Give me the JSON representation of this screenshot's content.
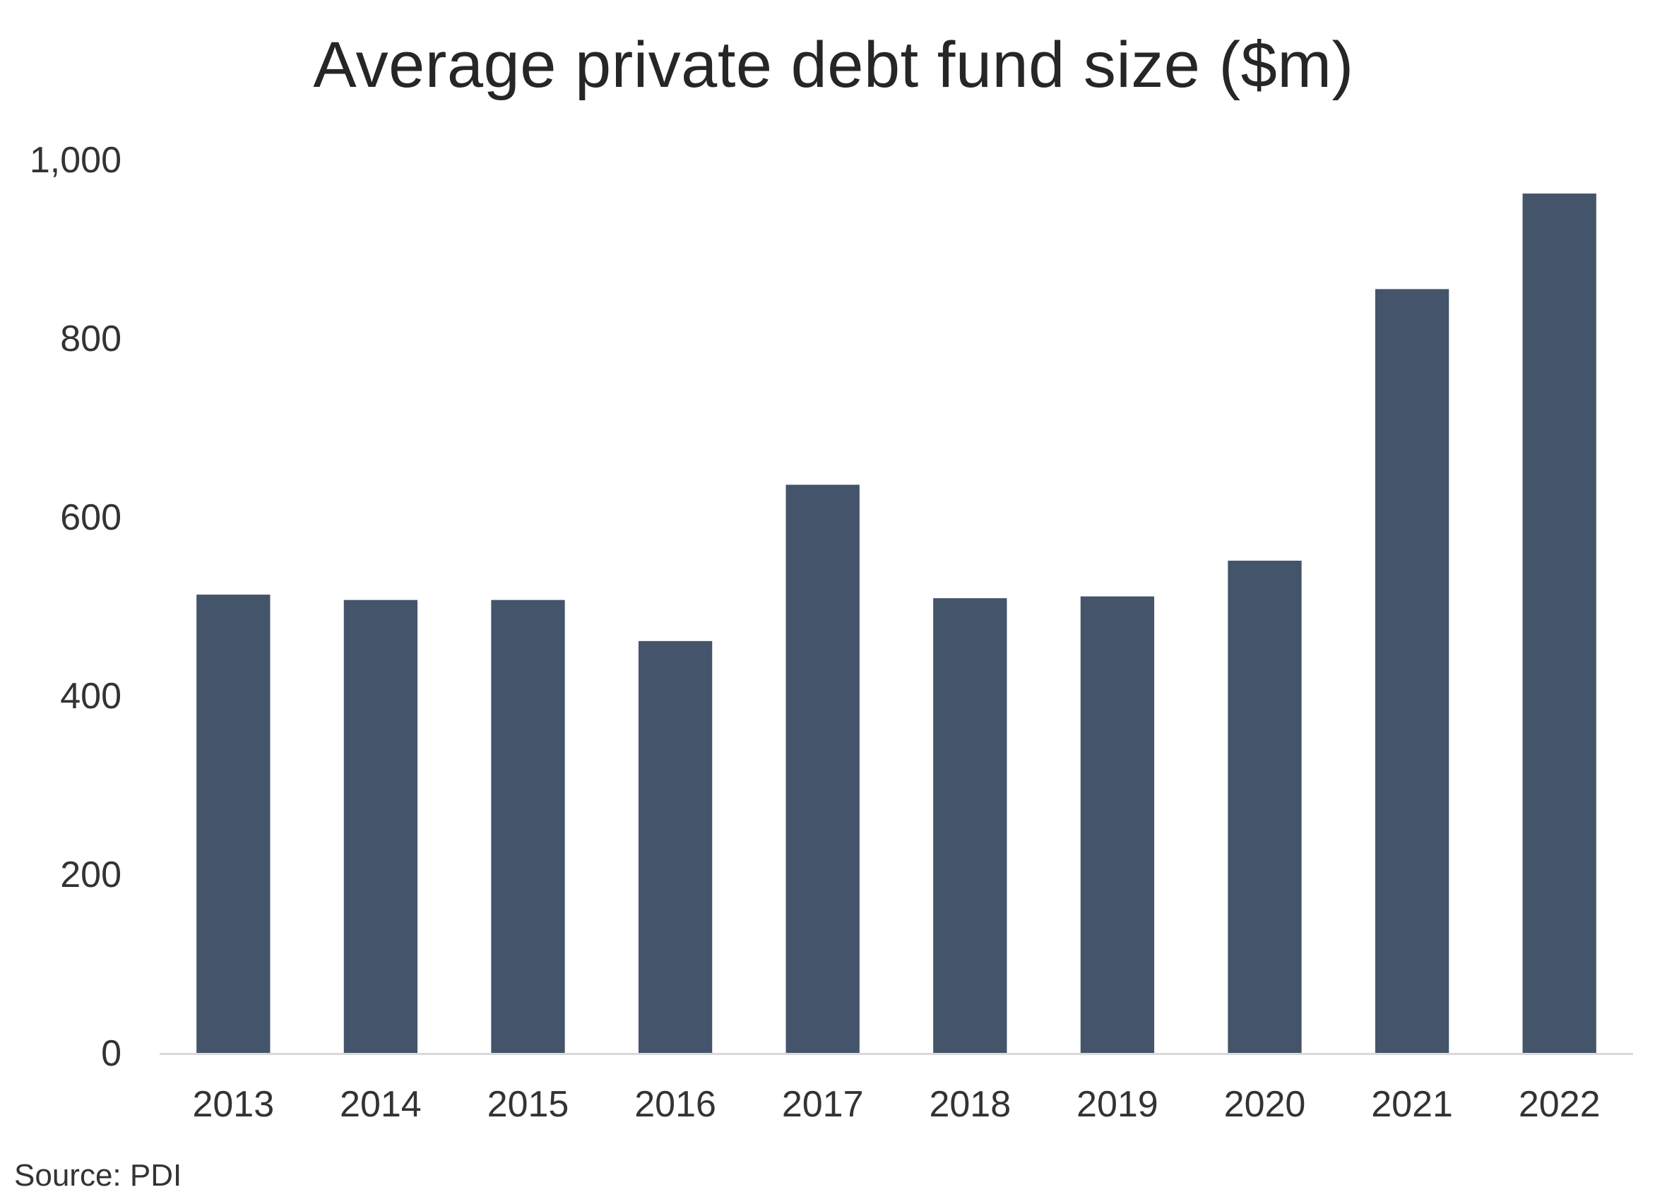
{
  "chart_data": {
    "type": "bar",
    "title": "Average private debt fund size ($m)",
    "categories": [
      "2013",
      "2014",
      "2015",
      "2016",
      "2017",
      "2018",
      "2019",
      "2020",
      "2021",
      "2022"
    ],
    "values": [
      513,
      507,
      507,
      461,
      636,
      509,
      511,
      551,
      855,
      962
    ],
    "ylim": [
      0,
      1000
    ],
    "yticks": [
      0,
      200,
      400,
      600,
      800,
      1000
    ],
    "ytick_labels": [
      "0",
      "200",
      "400",
      "600",
      "800",
      "1,000"
    ],
    "grid": false,
    "legend": "none",
    "bar_color": "#44546a"
  },
  "source": "Source: PDI"
}
